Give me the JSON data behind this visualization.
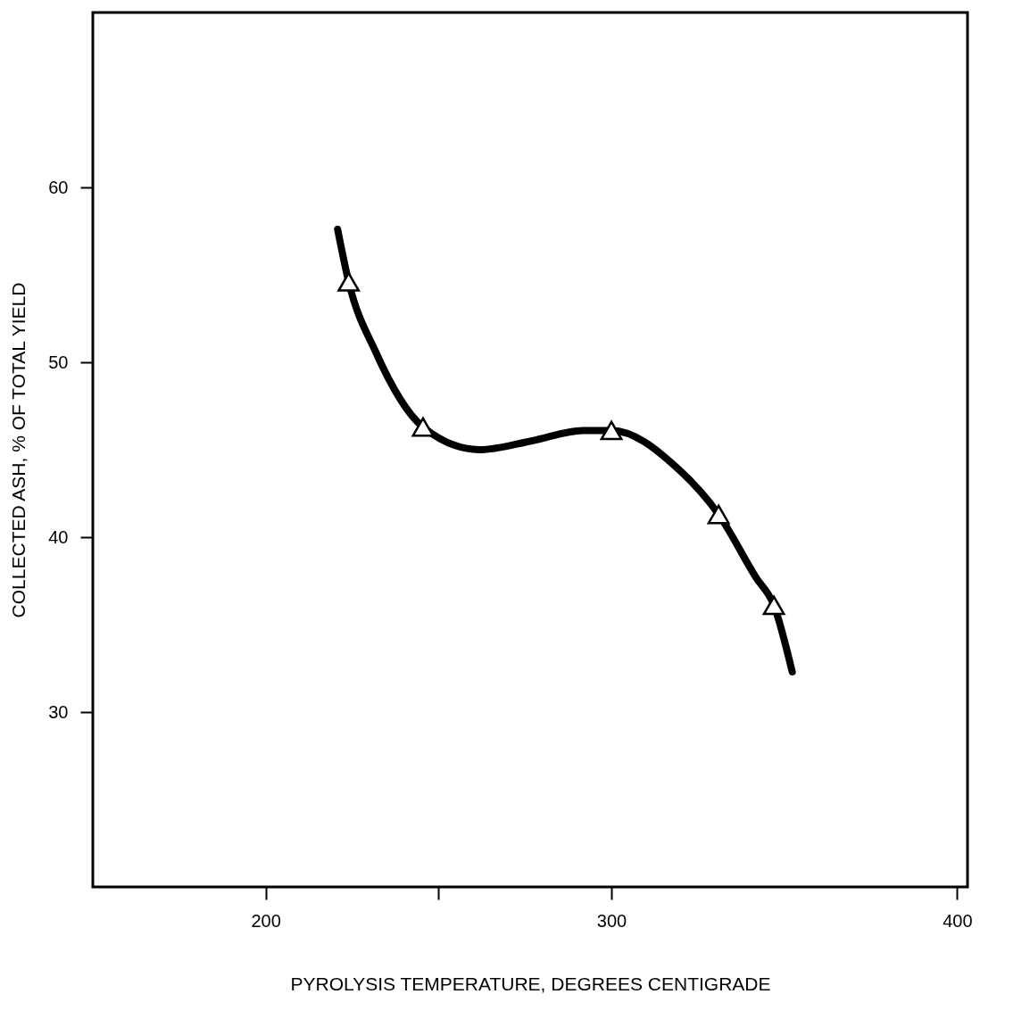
{
  "chart_data": {
    "type": "line",
    "xlabel": "PYROLYSIS TEMPERATURE, DEGREES CENTIGRADE",
    "ylabel": "COLLECTED ASH, % OF TOTAL YIELD",
    "xlim": [
      150,
      403
    ],
    "ylim": [
      20,
      70
    ],
    "xticks": [
      200,
      {
        "value": 250,
        "label": null
      },
      300,
      400
    ],
    "yticks": [
      30,
      40,
      50,
      60
    ],
    "grid": false,
    "series": [
      {
        "color": "#000000",
        "marker": "none",
        "line_style": "solid",
        "x": [
          220.8,
          224,
          231.8,
          245.5,
          261.8,
          276.8,
          291.8,
          300,
          319.3,
          331,
          341.8,
          347,
          352.3
        ],
        "values": [
          57.6,
          54.6,
          50.6,
          46.3,
          45.0,
          45.5,
          46.1,
          46.1,
          43.9,
          41.3,
          37.7,
          36.1,
          32.3
        ]
      },
      {
        "type": "scatter",
        "color": "#000000",
        "marker": "triangle",
        "x": [
          224,
          245.5,
          300,
          331,
          347
        ],
        "values": [
          54.6,
          46.3,
          46.1,
          41.3,
          36.1
        ]
      }
    ]
  }
}
